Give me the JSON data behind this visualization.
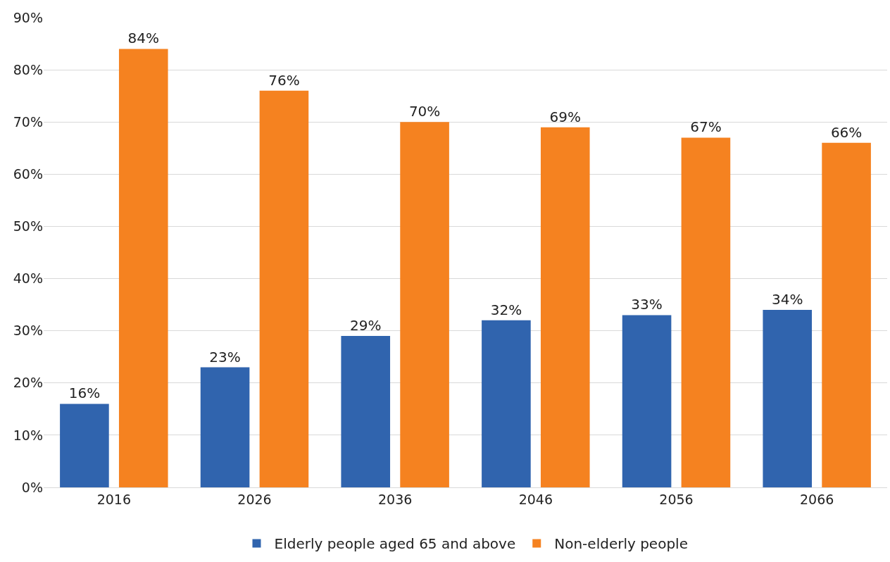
{
  "chart_data": {
    "type": "bar",
    "categories": [
      "2016",
      "2026",
      "2036",
      "2046",
      "2056",
      "2066"
    ],
    "series": [
      {
        "name": "Elderly people aged 65 and above",
        "color": "#3064ae",
        "values": [
          16,
          23,
          29,
          32,
          33,
          34
        ],
        "value_labels": [
          "16%",
          "23%",
          "29%",
          "32%",
          "33%",
          "34%"
        ]
      },
      {
        "name": "Non-elderly people",
        "color": "#f58220",
        "values": [
          84,
          76,
          70,
          69,
          67,
          66
        ],
        "value_labels": [
          "84%",
          "76%",
          "70%",
          "69%",
          "67%",
          "66%"
        ]
      }
    ],
    "ylim": [
      0,
      90
    ],
    "yticks": [
      {
        "value": 0,
        "label": "0%"
      },
      {
        "value": 10,
        "label": "10%"
      },
      {
        "value": 20,
        "label": "20%"
      },
      {
        "value": 30,
        "label": "30%"
      },
      {
        "value": 40,
        "label": "40%"
      },
      {
        "value": 50,
        "label": "50%"
      },
      {
        "value": 60,
        "label": "60%"
      },
      {
        "value": 70,
        "label": "70%"
      },
      {
        "value": 80,
        "label": "80%"
      },
      {
        "value": 90,
        "label": "90%"
      }
    ],
    "grid": "y",
    "legend": "bottom"
  }
}
